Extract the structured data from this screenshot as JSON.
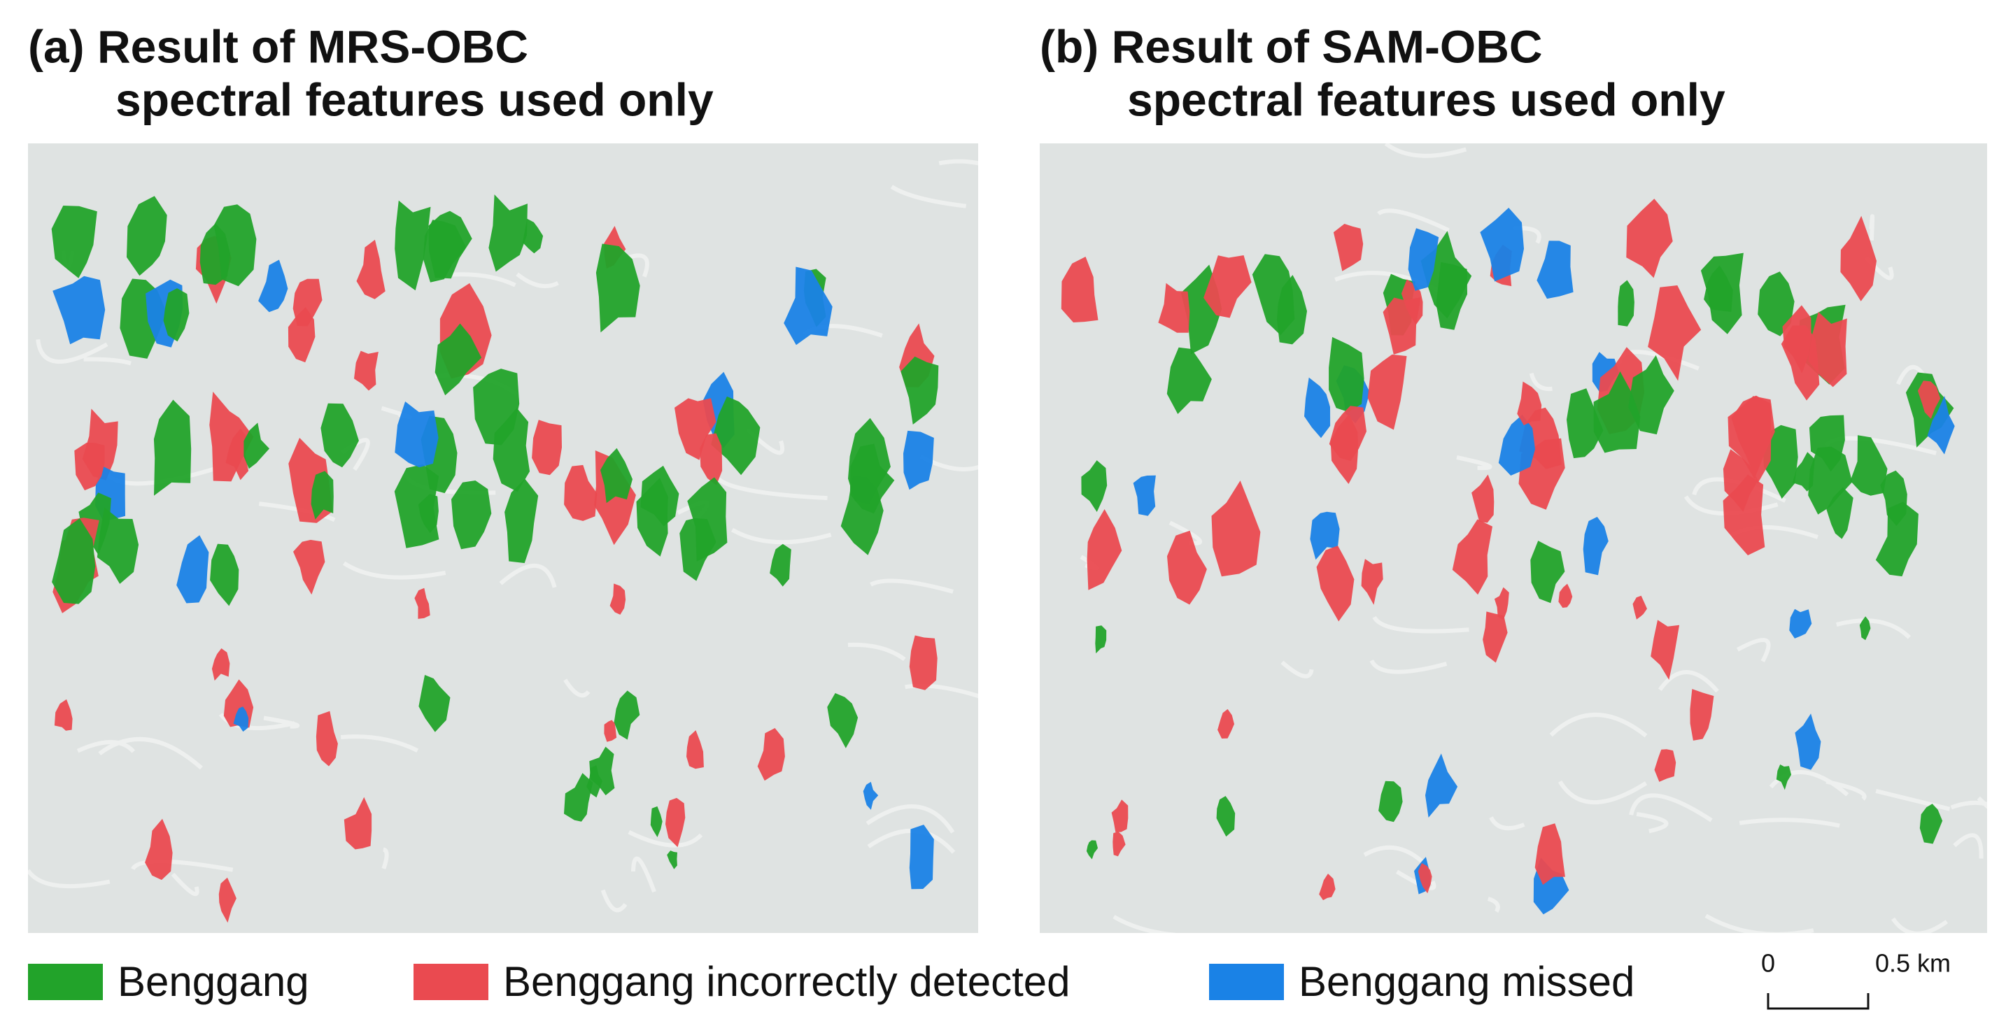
{
  "panels": [
    {
      "title": [
        "(a) Result of MRS-OBC",
        "spectral features used only"
      ]
    },
    {
      "title": [
        "(b) Result of SAM-OBC",
        "spectral features used only"
      ]
    }
  ],
  "legend": [
    {
      "label": "Benggang",
      "color": "#22a32a"
    },
    {
      "label": "Benggang incorrectly detected",
      "color": "#ea4a50"
    },
    {
      "label": "Benggang missed",
      "color": "#1a82e6"
    }
  ],
  "scale_bar": {
    "labels": [
      "0",
      "0.5 km"
    ]
  }
}
